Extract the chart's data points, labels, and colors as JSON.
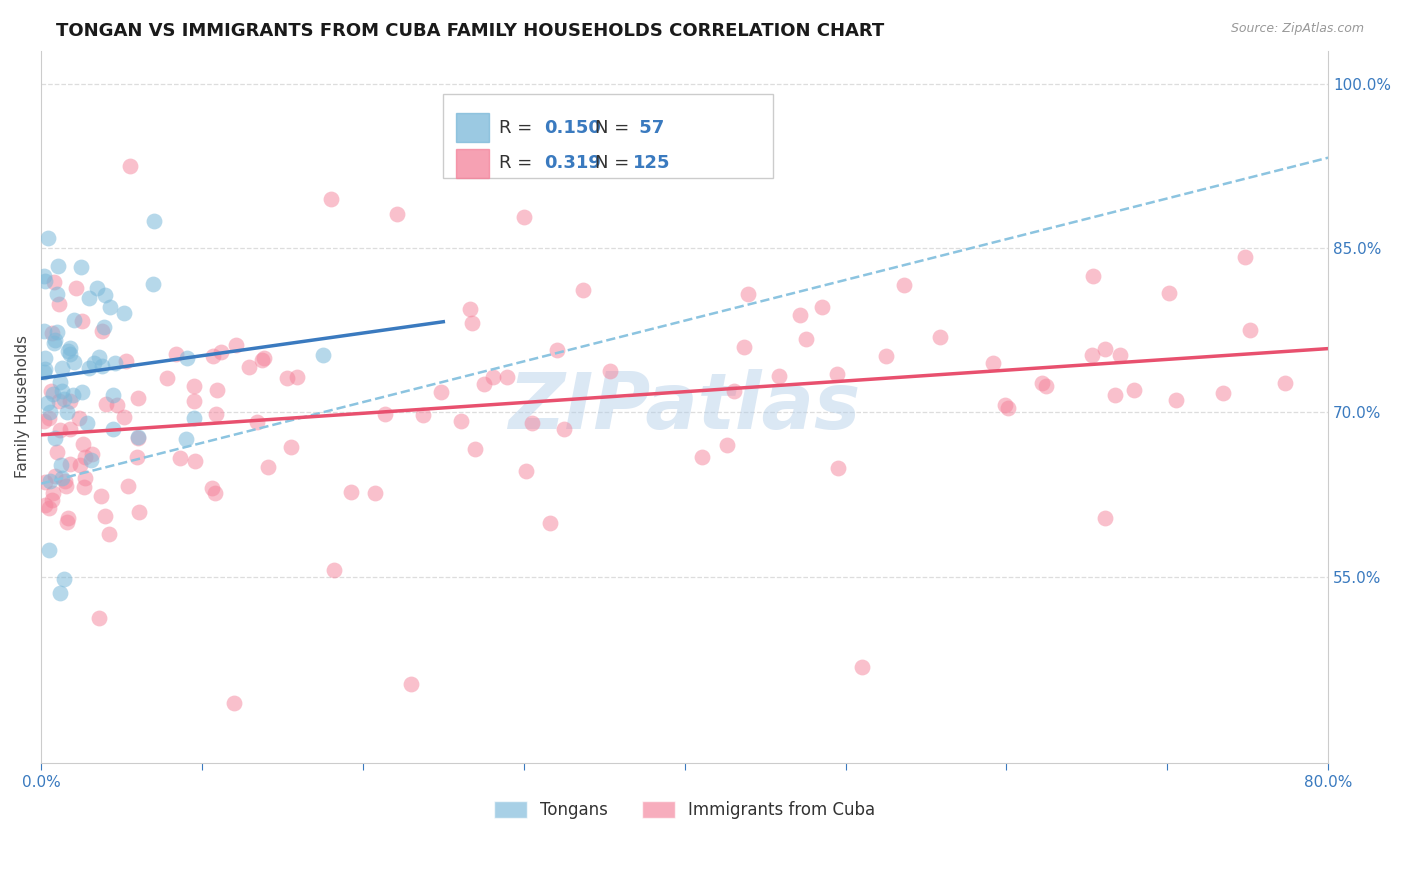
{
  "title": "TONGAN VS IMMIGRANTS FROM CUBA FAMILY HOUSEHOLDS CORRELATION CHART",
  "source": "Source: ZipAtlas.com",
  "ylabel": "Family Households",
  "x_min": 0.0,
  "x_max": 0.8,
  "y_min": 0.38,
  "y_max": 1.03,
  "right_yticks": [
    1.0,
    0.85,
    0.7,
    0.55
  ],
  "right_yticklabels": [
    "100.0%",
    "85.0%",
    "70.0%",
    "55.0%"
  ],
  "xtick_positions": [
    0.0,
    0.1,
    0.2,
    0.3,
    0.4,
    0.5,
    0.6,
    0.7,
    0.8
  ],
  "xtick_labels": [
    "0.0%",
    "",
    "",
    "",
    "",
    "",
    "",
    "",
    "80.0%"
  ],
  "tongan_color": "#7ab8d9",
  "cuba_color": "#f4829a",
  "tongan_line_color": "#3a7abf",
  "cuba_line_color": "#e8506e",
  "dashed_line_color": "#8cc4e0",
  "watermark_text": "ZIPatlas",
  "watermark_color": "#b0cce8",
  "title_fontsize": 13,
  "axis_label_fontsize": 11,
  "tick_fontsize": 11,
  "r_tongan": 0.15,
  "n_tongan": 57,
  "r_cuba": 0.319,
  "n_cuba": 125,
  "grid_color": "#dddddd",
  "legend_box_color": "#eeeeee",
  "legend_r_color": "#333333",
  "legend_val_color": "#3a7abf",
  "spine_color": "#cccccc"
}
